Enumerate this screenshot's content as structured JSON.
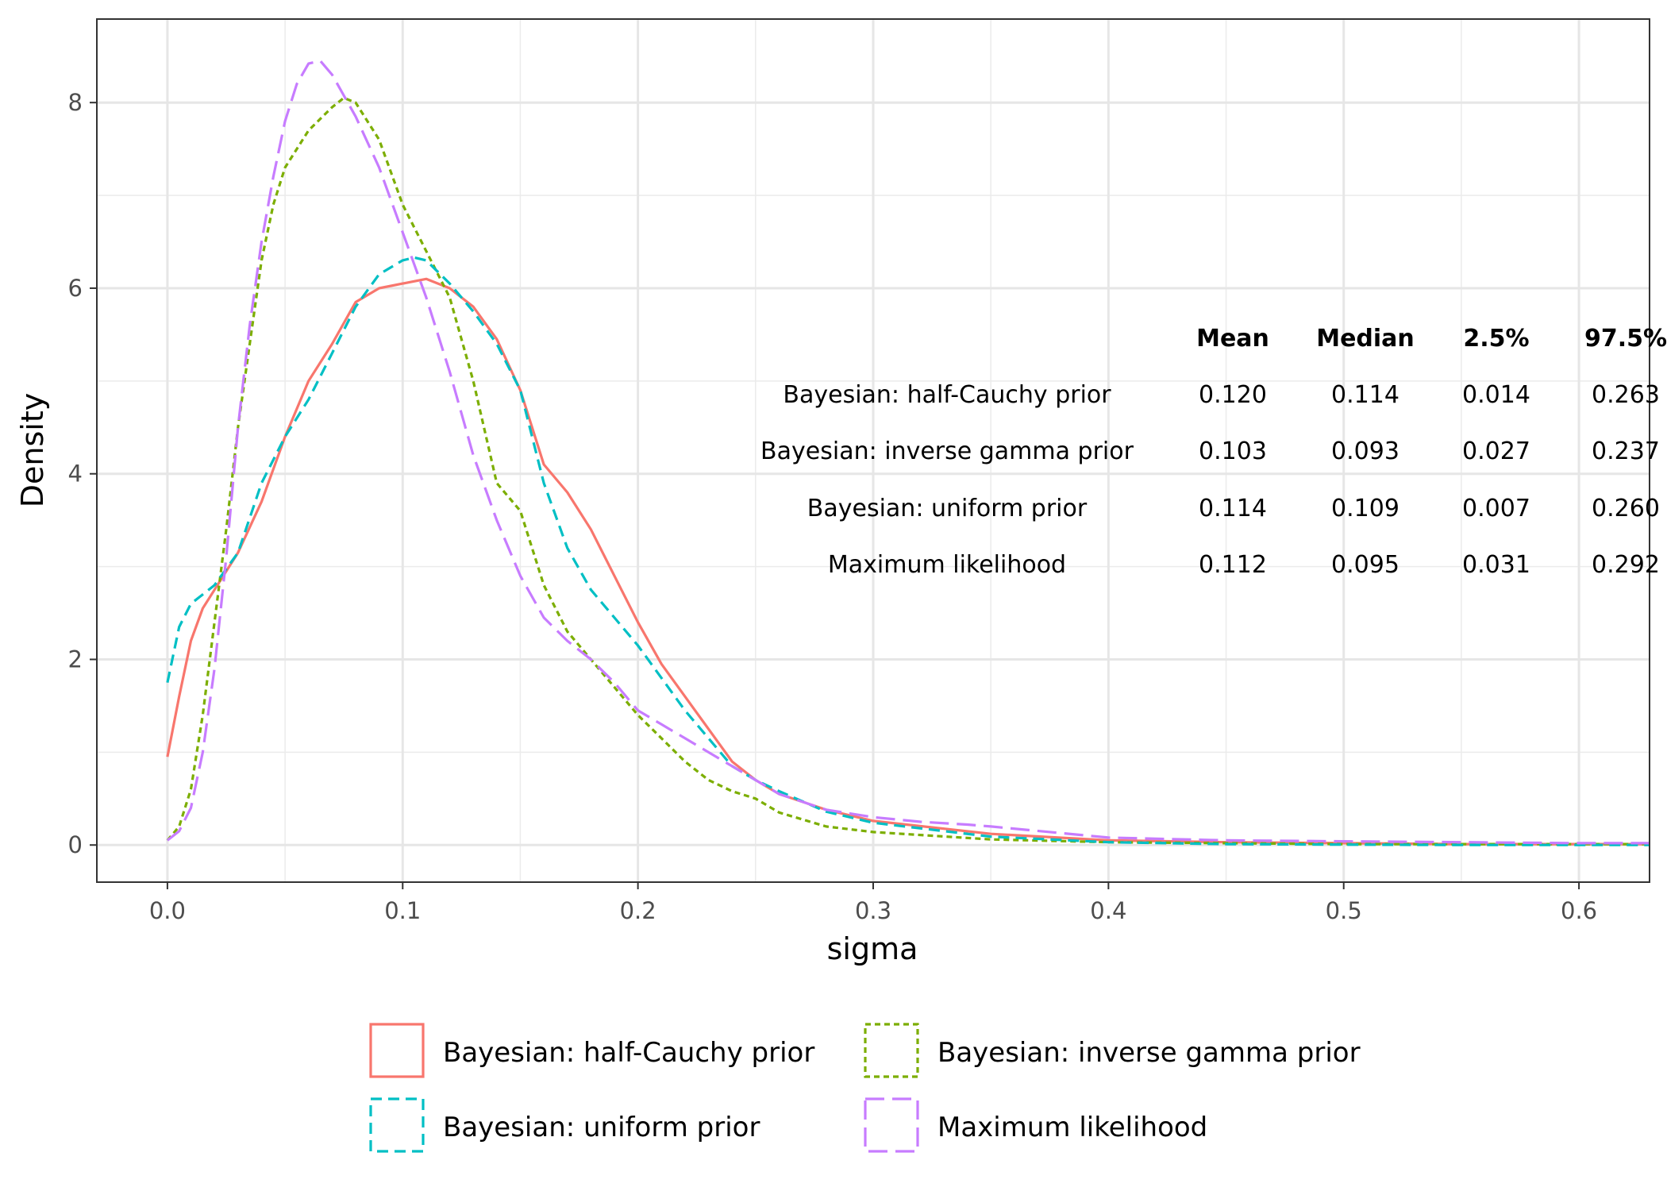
{
  "chart_data": {
    "type": "line",
    "xlabel": "sigma",
    "ylabel": "Density",
    "xlim": [
      -0.03,
      0.63
    ],
    "ylim": [
      -0.4,
      8.9
    ],
    "xticks": [
      0.0,
      0.1,
      0.2,
      0.3,
      0.4,
      0.5,
      0.6
    ],
    "xtick_labels": [
      "0.0",
      "0.1",
      "0.2",
      "0.3",
      "0.4",
      "0.5",
      "0.6"
    ],
    "yticks": [
      0,
      2,
      4,
      6,
      8
    ],
    "ytick_labels": [
      "0",
      "2",
      "4",
      "6",
      "8"
    ],
    "grid": true,
    "legend_position": "bottom",
    "series": [
      {
        "name": "Bayesian: half-Cauchy prior",
        "color": "#F8766D",
        "dash": "solid",
        "x": [
          0.0,
          0.005,
          0.01,
          0.015,
          0.02,
          0.03,
          0.04,
          0.05,
          0.06,
          0.07,
          0.08,
          0.09,
          0.1,
          0.11,
          0.12,
          0.13,
          0.14,
          0.15,
          0.16,
          0.17,
          0.18,
          0.19,
          0.2,
          0.21,
          0.22,
          0.23,
          0.24,
          0.25,
          0.26,
          0.28,
          0.3,
          0.35,
          0.4,
          0.45,
          0.5,
          0.55,
          0.6,
          0.63
        ],
        "y": [
          0.95,
          1.6,
          2.2,
          2.55,
          2.75,
          3.15,
          3.7,
          4.4,
          5.0,
          5.4,
          5.85,
          6.0,
          6.05,
          6.1,
          6.0,
          5.8,
          5.45,
          4.9,
          4.1,
          3.8,
          3.4,
          2.9,
          2.4,
          1.95,
          1.6,
          1.25,
          0.9,
          0.7,
          0.55,
          0.38,
          0.26,
          0.12,
          0.05,
          0.03,
          0.02,
          0.01,
          0.01,
          0.01
        ]
      },
      {
        "name": "Bayesian: inverse gamma prior",
        "color": "#7CAE00",
        "dash": "dotted",
        "x": [
          0.0,
          0.005,
          0.01,
          0.015,
          0.02,
          0.025,
          0.03,
          0.035,
          0.04,
          0.045,
          0.05,
          0.06,
          0.07,
          0.075,
          0.08,
          0.09,
          0.1,
          0.11,
          0.12,
          0.13,
          0.14,
          0.15,
          0.16,
          0.17,
          0.18,
          0.19,
          0.2,
          0.21,
          0.22,
          0.23,
          0.24,
          0.25,
          0.26,
          0.28,
          0.3,
          0.35,
          0.4,
          0.45,
          0.5,
          0.55,
          0.6,
          0.63
        ],
        "y": [
          0.05,
          0.2,
          0.6,
          1.4,
          2.4,
          3.4,
          4.5,
          5.4,
          6.3,
          6.9,
          7.3,
          7.7,
          7.95,
          8.05,
          8.0,
          7.6,
          6.9,
          6.4,
          5.9,
          5.0,
          3.9,
          3.6,
          2.8,
          2.3,
          2.0,
          1.7,
          1.4,
          1.15,
          0.9,
          0.7,
          0.58,
          0.5,
          0.35,
          0.2,
          0.14,
          0.06,
          0.03,
          0.02,
          0.01,
          0.01,
          0.01,
          0.01
        ]
      },
      {
        "name": "Bayesian: uniform prior",
        "color": "#00BFC4",
        "dash": "dashed",
        "x": [
          0.0,
          0.005,
          0.01,
          0.015,
          0.02,
          0.03,
          0.04,
          0.05,
          0.06,
          0.07,
          0.08,
          0.09,
          0.1,
          0.105,
          0.11,
          0.12,
          0.13,
          0.14,
          0.15,
          0.16,
          0.17,
          0.18,
          0.19,
          0.2,
          0.21,
          0.22,
          0.23,
          0.24,
          0.25,
          0.26,
          0.28,
          0.3,
          0.35,
          0.4,
          0.45,
          0.5,
          0.55,
          0.6,
          0.63
        ],
        "y": [
          1.75,
          2.35,
          2.6,
          2.7,
          2.8,
          3.15,
          3.9,
          4.4,
          4.8,
          5.3,
          5.8,
          6.15,
          6.3,
          6.33,
          6.3,
          6.05,
          5.75,
          5.4,
          4.9,
          3.9,
          3.2,
          2.75,
          2.45,
          2.15,
          1.8,
          1.45,
          1.15,
          0.85,
          0.7,
          0.58,
          0.36,
          0.24,
          0.09,
          0.03,
          0.01,
          0.005,
          0.0,
          0.0,
          0.0
        ]
      },
      {
        "name": "Maximum likelihood",
        "color": "#C77CFF",
        "dash": "longdash",
        "x": [
          0.0,
          0.005,
          0.01,
          0.015,
          0.02,
          0.025,
          0.03,
          0.035,
          0.04,
          0.045,
          0.05,
          0.055,
          0.06,
          0.065,
          0.07,
          0.08,
          0.09,
          0.1,
          0.11,
          0.12,
          0.13,
          0.14,
          0.15,
          0.16,
          0.17,
          0.18,
          0.19,
          0.2,
          0.21,
          0.22,
          0.23,
          0.24,
          0.25,
          0.26,
          0.28,
          0.3,
          0.32,
          0.34,
          0.35,
          0.4,
          0.45,
          0.5,
          0.55,
          0.6,
          0.63
        ],
        "y": [
          0.05,
          0.15,
          0.4,
          1.0,
          1.9,
          3.1,
          4.5,
          5.6,
          6.5,
          7.2,
          7.8,
          8.2,
          8.42,
          8.45,
          8.3,
          7.85,
          7.3,
          6.6,
          5.9,
          5.1,
          4.2,
          3.5,
          2.9,
          2.45,
          2.2,
          2.0,
          1.75,
          1.45,
          1.3,
          1.15,
          1.0,
          0.85,
          0.7,
          0.55,
          0.38,
          0.3,
          0.25,
          0.22,
          0.2,
          0.08,
          0.05,
          0.04,
          0.03,
          0.02,
          0.02
        ]
      }
    ],
    "summary_table": {
      "headers": [
        "Mean",
        "Median",
        "2.5%",
        "97.5%"
      ],
      "rows": [
        {
          "label": "Bayesian: half-Cauchy prior",
          "values": [
            "0.120",
            "0.114",
            "0.014",
            "0.263"
          ]
        },
        {
          "label": "Bayesian: inverse gamma prior",
          "values": [
            "0.103",
            "0.093",
            "0.027",
            "0.237"
          ]
        },
        {
          "label": "Bayesian: uniform prior",
          "values": [
            "0.114",
            "0.109",
            "0.007",
            "0.260"
          ]
        },
        {
          "label": "Maximum likelihood",
          "values": [
            "0.112",
            "0.095",
            "0.031",
            "0.292"
          ]
        }
      ]
    }
  }
}
